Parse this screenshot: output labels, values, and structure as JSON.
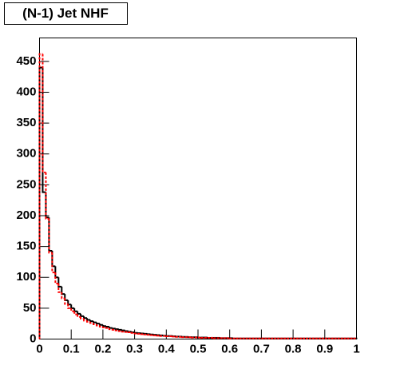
{
  "chart_data": {
    "type": "histogram",
    "title": "(N-1) Jet NHF",
    "bins": [
      0,
      0.01,
      0.02,
      0.03,
      0.04,
      0.05,
      0.06,
      0.07,
      0.08,
      0.09,
      0.1,
      0.11,
      0.12,
      0.13,
      0.14,
      0.15,
      0.16,
      0.17,
      0.18,
      0.19,
      0.2,
      0.21,
      0.22,
      0.23,
      0.24,
      0.25,
      0.26,
      0.27,
      0.28,
      0.29,
      0.3,
      0.31,
      0.32,
      0.33,
      0.34,
      0.35,
      0.36,
      0.37,
      0.38,
      0.39,
      0.4,
      0.41,
      0.42,
      0.43,
      0.44,
      0.45,
      0.46,
      0.47,
      0.48,
      0.49,
      0.5,
      0.51,
      0.52,
      0.53,
      0.54,
      0.55,
      0.56,
      0.57,
      0.58,
      0.59,
      0.6,
      0.61,
      0.62,
      0.63,
      0.64,
      0.65,
      0.66,
      0.67,
      0.68,
      0.69,
      0.7,
      0.71,
      0.72,
      0.73,
      0.74,
      0.75,
      0.76,
      0.77,
      0.78,
      0.79,
      0.8,
      0.81,
      0.82,
      0.83,
      0.84,
      0.85,
      0.86,
      0.87,
      0.88,
      0.89,
      0.9,
      0.91,
      0.92,
      0.93,
      0.94,
      0.95,
      0.96,
      0.97,
      0.98,
      0.99,
      1
    ],
    "series": [
      {
        "color": "#000000",
        "dashed": false,
        "values": [
          440,
          238,
          197,
          143,
          118,
          100,
          85,
          73,
          63,
          56,
          50,
          45,
          41,
          37,
          34,
          31,
          29,
          27,
          25,
          23,
          21,
          20,
          18,
          17,
          16,
          15,
          14,
          13,
          12,
          11,
          10,
          9.5,
          9,
          8.5,
          8,
          7.5,
          7,
          6.5,
          6,
          5.5,
          5,
          5,
          4.5,
          4,
          4,
          3.5,
          3.5,
          3,
          3,
          3,
          2.5,
          2.5,
          2.5,
          2,
          2,
          2,
          2,
          1.5,
          1.5,
          1.5,
          1.5,
          1,
          1,
          1,
          1,
          1,
          1,
          1,
          1,
          1,
          1,
          1,
          1,
          1,
          1,
          1,
          1,
          1,
          1,
          1,
          1,
          1,
          1,
          1,
          1,
          1,
          1,
          1,
          1,
          1,
          1,
          1,
          1,
          1,
          1,
          1,
          1,
          1,
          1,
          1
        ]
      },
      {
        "color": "#ff0000",
        "dashed": true,
        "values": [
          462,
          270,
          195,
          140,
          108,
          90,
          76,
          66,
          57,
          50,
          45,
          40,
          36,
          33,
          30,
          28,
          26,
          24,
          22,
          20,
          19,
          18,
          16,
          15,
          14,
          13,
          12,
          11.5,
          11,
          10,
          9,
          8.5,
          8,
          7.5,
          7,
          6.5,
          6,
          5.5,
          5,
          5,
          4.5,
          4.5,
          4,
          3.5,
          3.5,
          3,
          3,
          3,
          2.5,
          2.5,
          2.5,
          2,
          2,
          2,
          2,
          1.5,
          1.5,
          1.5,
          1.5,
          1.5,
          1,
          1,
          1,
          1,
          1,
          1,
          1,
          1,
          1,
          1,
          1,
          1,
          1,
          1,
          1,
          1,
          1,
          1,
          1,
          1,
          1,
          1,
          1,
          1,
          1,
          1,
          1,
          1,
          1,
          1,
          1,
          1,
          1,
          1,
          1,
          1,
          1,
          1,
          1,
          1
        ]
      }
    ],
    "xlim": [
      0,
      1
    ],
    "xticks": [
      0,
      0.1,
      0.2,
      0.3,
      0.4,
      0.5,
      0.6,
      0.7,
      0.8,
      0.9,
      1
    ],
    "ylim": [
      0,
      488
    ],
    "yticks": [
      0,
      50,
      100,
      150,
      200,
      250,
      300,
      350,
      400,
      450
    ]
  }
}
